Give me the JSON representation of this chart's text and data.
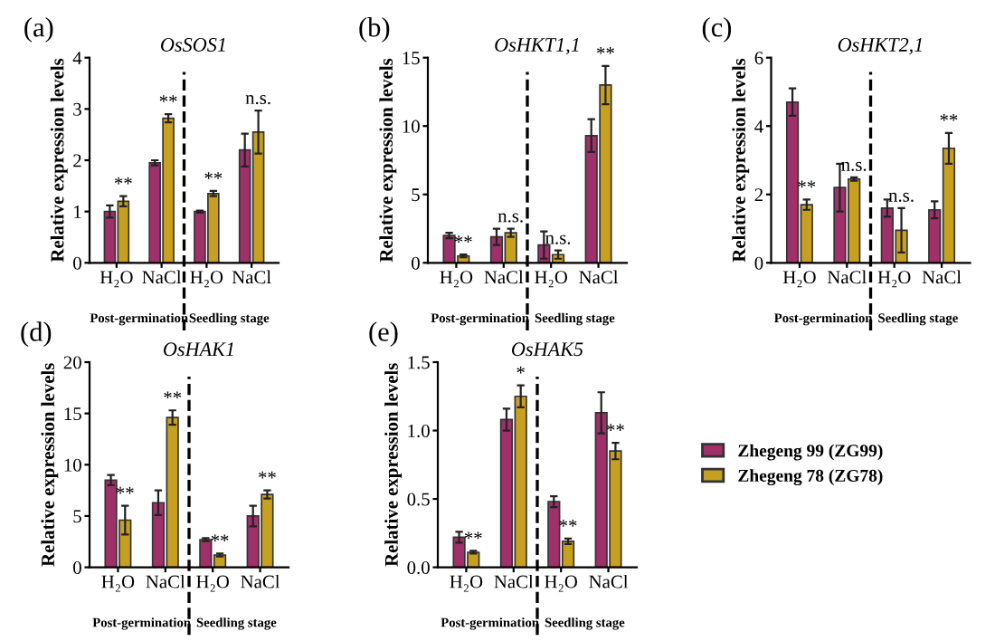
{
  "chart_data": [
    {
      "type": "bar",
      "title": "(a)",
      "subtitle": "OsSOS1",
      "ylabel": "Relative expression levels",
      "categories": [
        "H₂O",
        "NaCl",
        "H₂O",
        "NaCl"
      ],
      "ylim": [
        0,
        4
      ],
      "yticks": [
        0,
        1,
        2,
        3,
        4
      ],
      "grid": false,
      "legend": false,
      "series": [
        {
          "color": "#a0306a",
          "values": [
            1.0,
            1.95,
            1.0,
            2.2
          ],
          "errors": [
            0.12,
            0.05,
            0.02,
            0.32
          ]
        },
        {
          "color": "#c8a020",
          "values": [
            1.2,
            2.82,
            1.35,
            2.55
          ],
          "errors": [
            0.1,
            0.08,
            0.05,
            0.42
          ]
        }
      ],
      "annotations": [
        "**",
        "**",
        "**",
        "n.s.",
        "Post-germination",
        "Seedling stage"
      ]
    },
    {
      "type": "bar",
      "title": "(b)",
      "subtitle": "OsHKT1,1",
      "ylabel": "Relative expression levels",
      "categories": [
        "H₂O",
        "NaCl",
        "H₂O",
        "NaCl"
      ],
      "ylim": [
        0,
        15
      ],
      "yticks": [
        0,
        5,
        10,
        15
      ],
      "grid": false,
      "legend": false,
      "series": [
        {
          "color": "#a0306a",
          "values": [
            2.0,
            1.9,
            1.3,
            9.3
          ],
          "errors": [
            0.2,
            0.6,
            1.0,
            1.2
          ]
        },
        {
          "color": "#c8a020",
          "values": [
            0.5,
            2.2,
            0.6,
            13.0
          ],
          "errors": [
            0.1,
            0.3,
            0.3,
            1.4
          ]
        }
      ],
      "annotations": [
        "**",
        "n.s.",
        "n.s.",
        "**",
        "Post-germination",
        "Seedling stage"
      ]
    },
    {
      "type": "bar",
      "title": "(c)",
      "subtitle": "OsHKT2,1",
      "ylabel": "Relative expression levels",
      "categories": [
        "H₂O",
        "NaCl",
        "H₂O",
        "NaCl"
      ],
      "ylim": [
        0,
        6
      ],
      "yticks": [
        0,
        2,
        4,
        6
      ],
      "grid": false,
      "legend": false,
      "series": [
        {
          "color": "#a0306a",
          "values": [
            4.7,
            2.2,
            1.6,
            1.55
          ],
          "errors": [
            0.4,
            0.7,
            0.25,
            0.25
          ]
        },
        {
          "color": "#c8a020",
          "values": [
            1.7,
            2.45,
            0.95,
            3.35
          ],
          "errors": [
            0.15,
            0.05,
            0.65,
            0.45
          ]
        }
      ],
      "annotations": [
        "**",
        "n.s.",
        "n.s.",
        "**",
        "Post-germination",
        "Seedling stage"
      ]
    },
    {
      "type": "bar",
      "title": "(d)",
      "subtitle": "OsHAK1",
      "ylabel": "Relative expression levels",
      "categories": [
        "H₂O",
        "NaCl",
        "H₂O",
        "NaCl"
      ],
      "ylim": [
        0,
        20
      ],
      "yticks": [
        0,
        5,
        10,
        15,
        20
      ],
      "grid": false,
      "legend": false,
      "series": [
        {
          "color": "#a0306a",
          "values": [
            8.5,
            6.3,
            2.7,
            5.0
          ],
          "errors": [
            0.5,
            1.2,
            0.15,
            1.0
          ]
        },
        {
          "color": "#c8a020",
          "values": [
            4.6,
            14.6,
            1.2,
            7.1
          ],
          "errors": [
            1.4,
            0.7,
            0.15,
            0.4
          ]
        }
      ],
      "annotations": [
        "**",
        "**",
        "**",
        "**",
        "Post-germination",
        "Seedling stage"
      ]
    },
    {
      "type": "bar",
      "title": "(e)",
      "subtitle": "OsHAK5",
      "ylabel": "Relative expression levels",
      "categories": [
        "H₂O",
        "NaCl",
        "H₂O",
        "NaCl"
      ],
      "ylim": [
        0,
        1.5
      ],
      "yticks": [
        {
          "value": 0,
          "label": "0.0"
        },
        0.5,
        {
          "value": 1,
          "label": "1.0"
        },
        1.5
      ],
      "grid": false,
      "legend": "right",
      "series": [
        {
          "name": "Zhegeng 99 (ZG99)",
          "color": "#a0306a",
          "values": [
            0.22,
            1.08,
            0.48,
            1.13
          ],
          "errors": [
            0.04,
            0.08,
            0.04,
            0.15
          ]
        },
        {
          "name": "Zhegeng 78 (ZG78)",
          "color": "#c8a020",
          "values": [
            0.11,
            1.25,
            0.19,
            0.85
          ],
          "errors": [
            0.01,
            0.08,
            0.02,
            0.06
          ]
        }
      ],
      "annotations": [
        "**",
        "*",
        "**",
        "**",
        "Post-germination",
        "Seedling stage"
      ]
    }
  ]
}
